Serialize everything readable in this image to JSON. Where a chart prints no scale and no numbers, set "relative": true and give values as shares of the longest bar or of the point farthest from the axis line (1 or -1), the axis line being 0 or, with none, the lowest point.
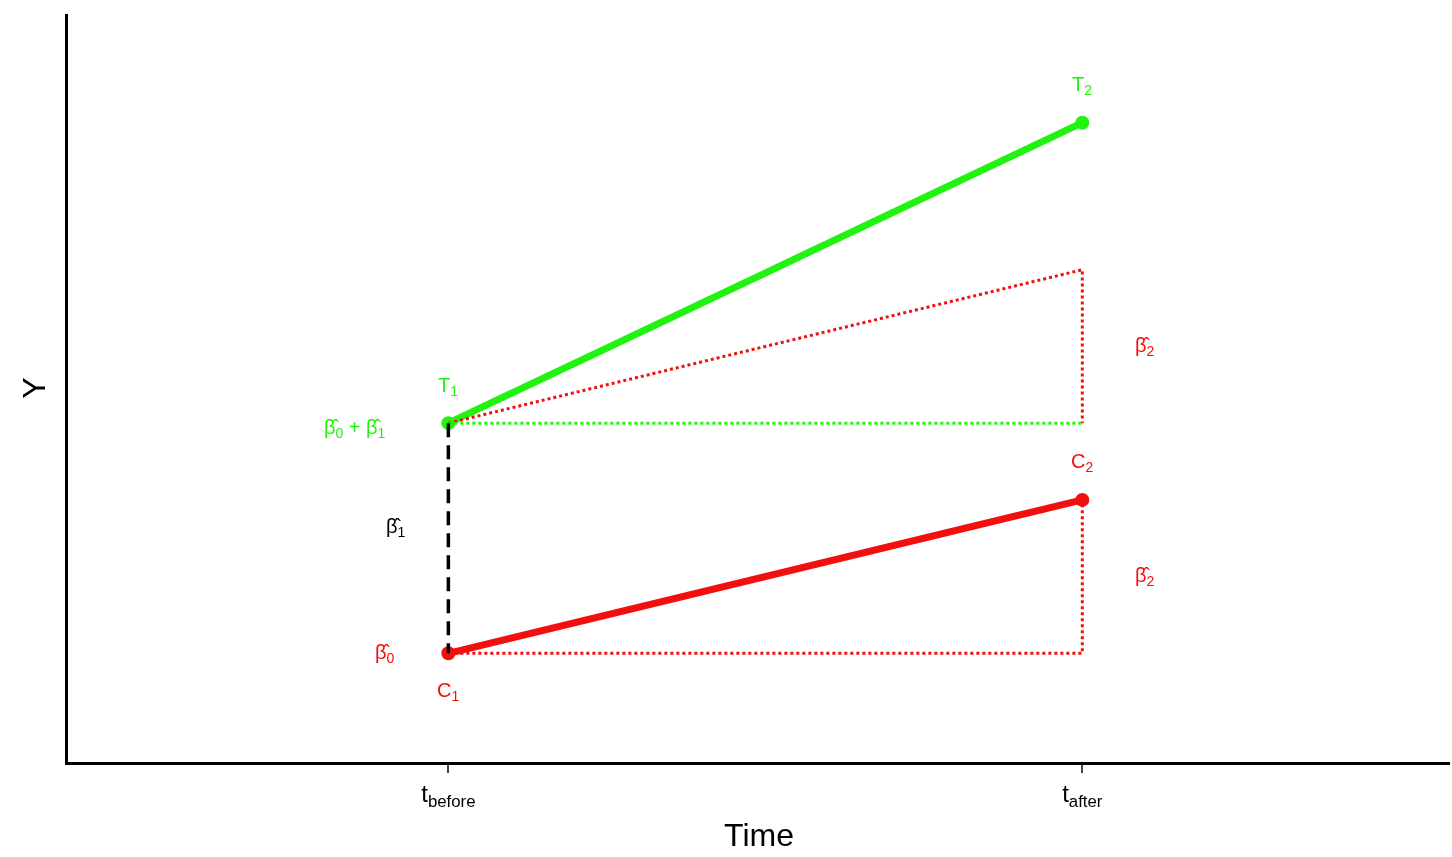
{
  "chart_data": {
    "type": "line",
    "relative": true,
    "xlabel": "Time",
    "ylabel": "Y",
    "categories": [
      "t$_{before}$",
      "t$_{after}$"
    ],
    "series": [
      {
        "color": "#22f20f",
        "values": [
          0.53,
          1
        ],
        "marker": "circle",
        "line_style": "solid"
      },
      {
        "color": "#f2100f",
        "values": [
          0.17,
          0.41
        ],
        "marker": "circle",
        "line_style": "solid"
      },
      {
        "color": "#f2100f",
        "x": [
          "t$_{before}$",
          "t$_{after}$",
          "t$_{after}$"
        ],
        "values": [
          0.53,
          0.77,
          0.53
        ],
        "marker": "none",
        "line_style": "dotted"
      },
      {
        "color": "#22f20f",
        "values": [
          0.53,
          0.53
        ],
        "marker": "none",
        "line_style": "dotted"
      },
      {
        "color": "#f2100f",
        "x": [
          "t$_{before}$",
          "t$_{after}$",
          "t$_{after}$"
        ],
        "values": [
          0.17,
          0.17,
          0.41
        ],
        "marker": "none",
        "line_style": "dotted"
      }
    ],
    "annotations": [
      {
        "text": "T$_{1}$",
        "x": "t$_{before}$",
        "y": 0.53
      },
      {
        "text": "T$_{2}$",
        "x": "t$_{after}$",
        "y": 1
      },
      {
        "text": "C$_{1}$",
        "x": "t$_{before}$",
        "y": 0.17
      },
      {
        "text": "C$_{2}$",
        "x": "t$_{after}$",
        "y": 0.41
      },
      "β̂$_{0}$ + β̂$_{1}$",
      "β̂$_{1}$",
      {
        "text": "β̂$_{0}$",
        "x": "t$_{before}$",
        "y": 0.17
      },
      {
        "text": "β̂$_{2}$",
        "x": "t$_{after}$",
        "y": 0.65
      },
      {
        "text": "β̂$_{2}$",
        "x": "t$_{after}$",
        "y": 0.29
      }
    ],
    "grid": false
  }
}
